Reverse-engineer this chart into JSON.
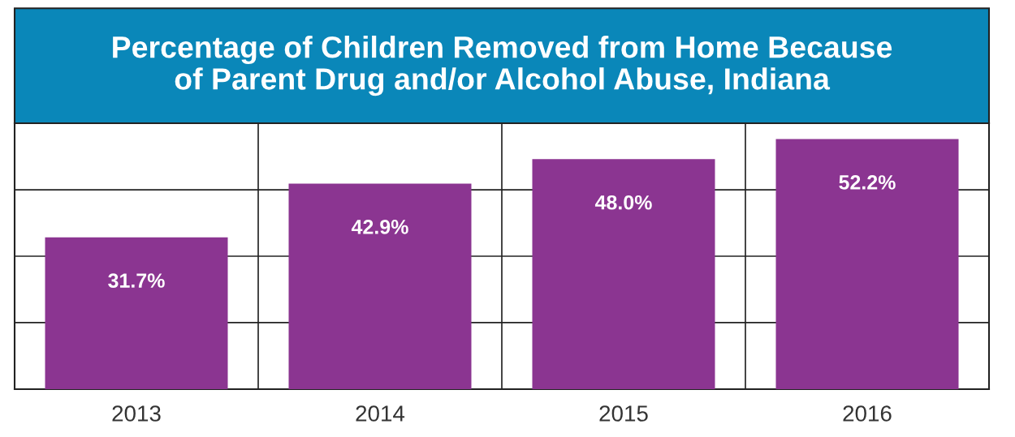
{
  "chart_data": {
    "type": "bar",
    "title": "Percentage of Children Removed from Home Because\nof Parent Drug and/or Alcohol Abuse, Indiana",
    "categories": [
      "2013",
      "2014",
      "2015",
      "2016"
    ],
    "values": [
      31.7,
      42.9,
      48.0,
      52.2
    ],
    "value_labels": [
      "31.7%",
      "42.9%",
      "48.0%",
      "52.2%"
    ],
    "color": "#8b3591",
    "ylim": [
      0,
      55.5
    ],
    "yticks": [
      {
        "value": 0,
        "label": null
      },
      {
        "value": 13.9,
        "label": null
      },
      {
        "value": 27.75,
        "label": null
      },
      {
        "value": 41.6,
        "label": null
      },
      {
        "value": 55.5,
        "label": null
      }
    ],
    "tick_labels": "x",
    "grid": true
  }
}
